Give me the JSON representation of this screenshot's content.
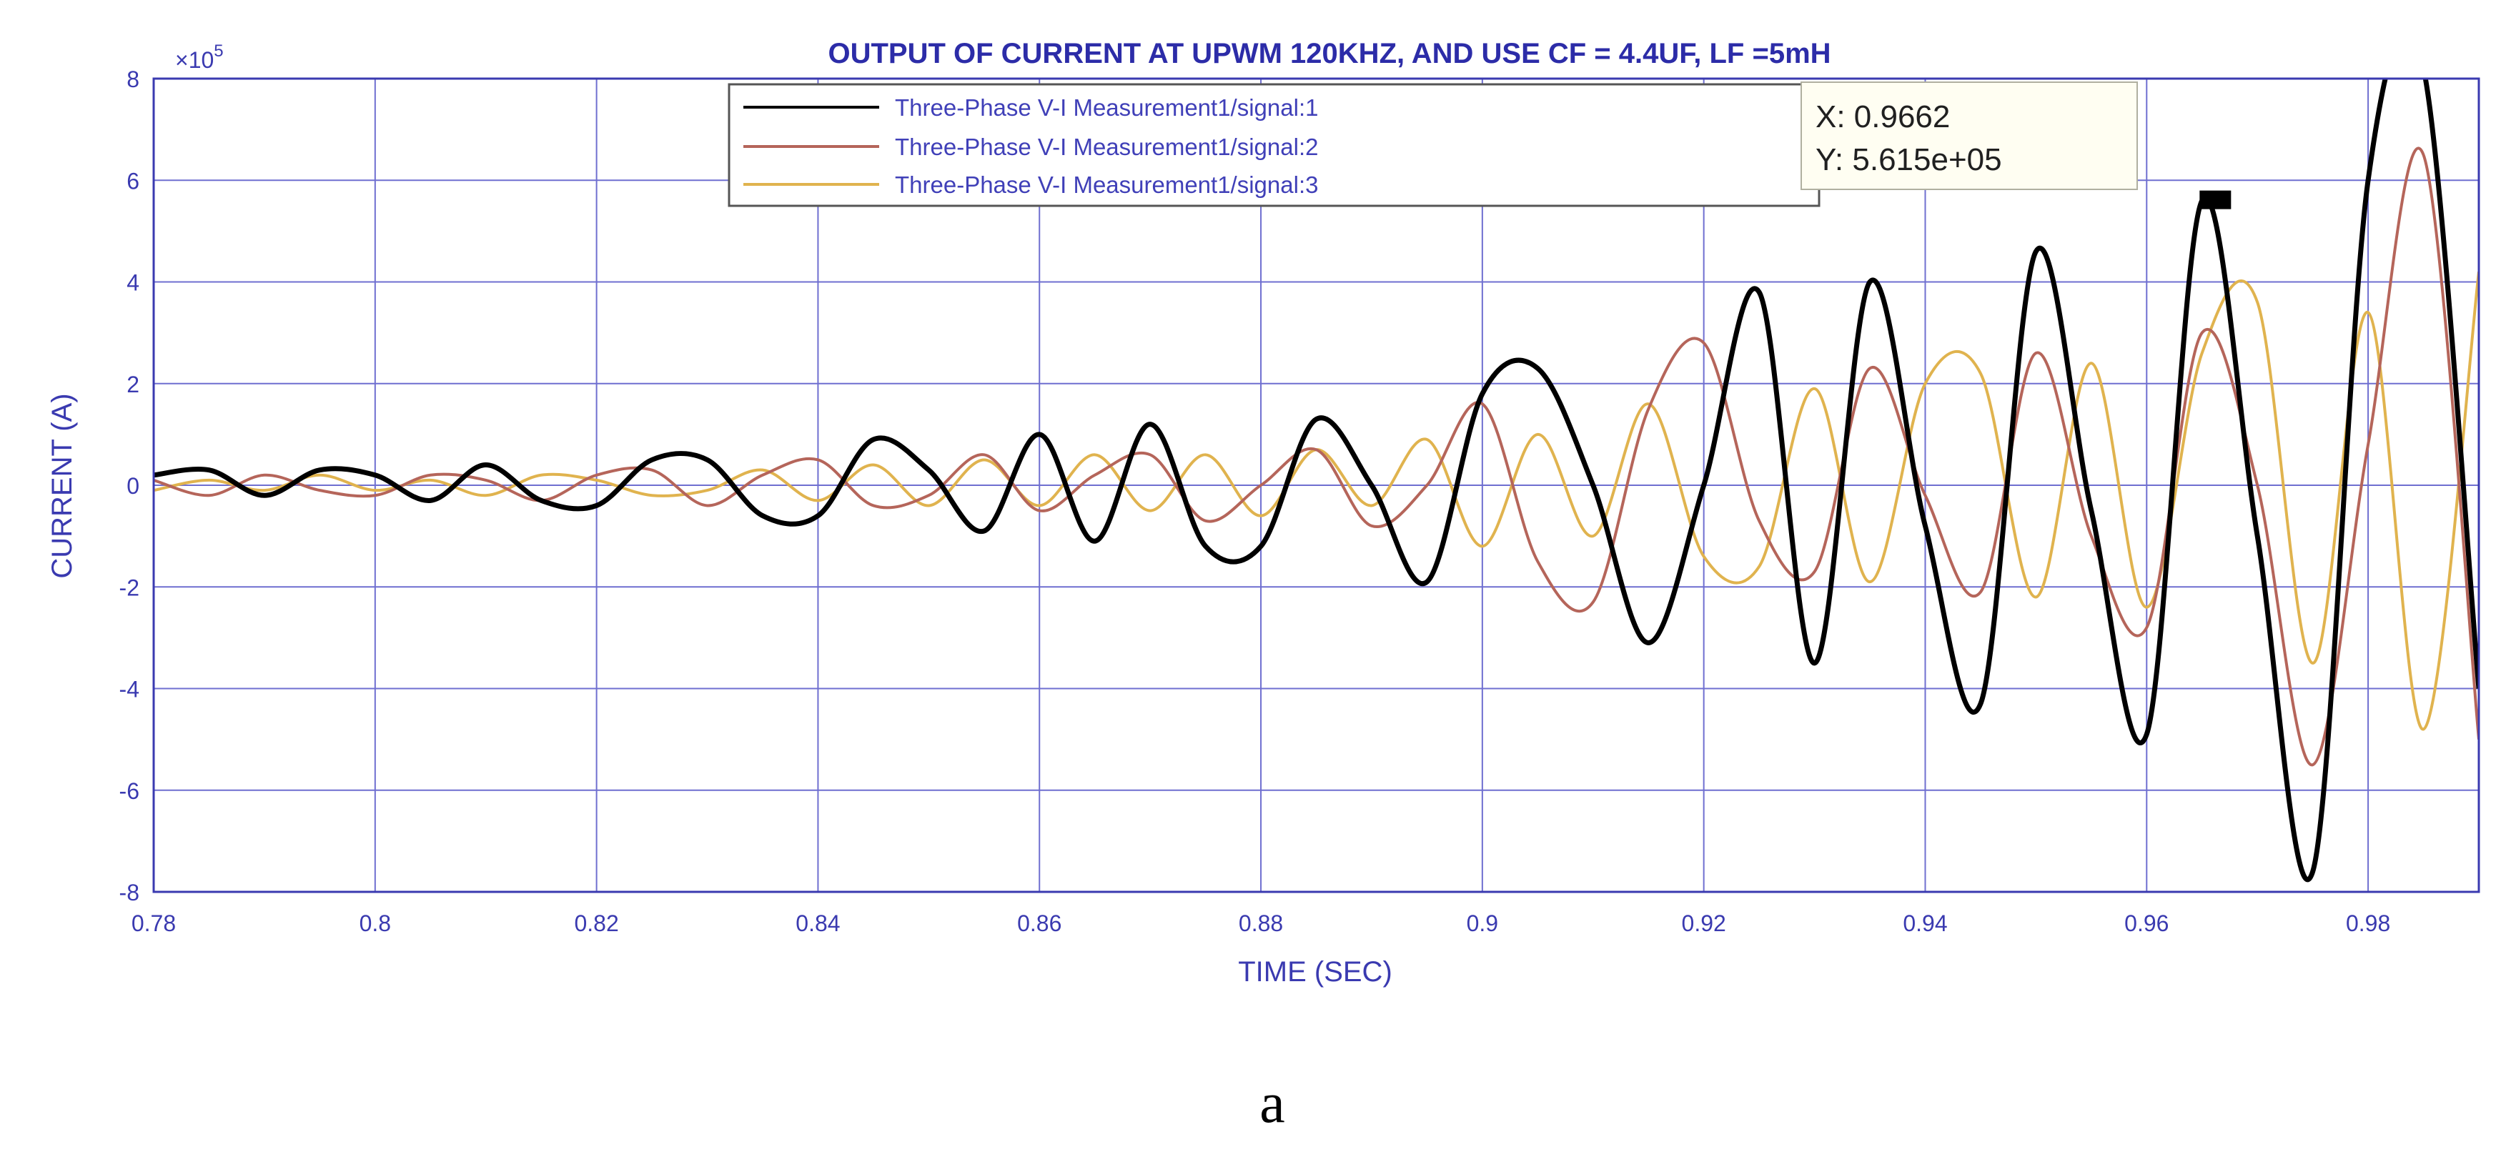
{
  "chart_data": {
    "type": "line",
    "title": "OUTPUT OF CURRENT AT UPWM 120KHZ, AND USE CF = 4.4UF, LF =5mH",
    "xlabel": "TIME (SEC)",
    "ylabel": "CURRENT (A)",
    "y_exponent_label": "×10",
    "y_exponent_power": "5",
    "xlim": [
      0.78,
      0.99
    ],
    "ylim": [
      -8,
      8
    ],
    "xticks": [
      0.78,
      0.8,
      0.82,
      0.84,
      0.86,
      0.88,
      0.9,
      0.92,
      0.94,
      0.96,
      0.98
    ],
    "xtick_labels": [
      "0.78",
      "0.8",
      "0.82",
      "0.84",
      "0.86",
      "0.88",
      "0.9",
      "0.92",
      "0.94",
      "0.96",
      "0.98"
    ],
    "yticks": [
      -8,
      -6,
      -4,
      -2,
      0,
      2,
      4,
      6,
      8
    ],
    "ytick_labels": [
      "-8",
      "-6",
      "-4",
      "-2",
      "0",
      "2",
      "4",
      "6",
      "8"
    ],
    "grid": true,
    "legend_position": "top-center",
    "colors": {
      "axis": "#3a3ab0",
      "grid": "#6f6fd0",
      "background": "#ffffff"
    },
    "series": [
      {
        "name": "Three-Phase V-I Measurement1/signal:1",
        "color": "#000000",
        "x": [
          0.78,
          0.785,
          0.79,
          0.795,
          0.8,
          0.805,
          0.81,
          0.815,
          0.82,
          0.825,
          0.83,
          0.835,
          0.84,
          0.845,
          0.85,
          0.855,
          0.86,
          0.865,
          0.87,
          0.875,
          0.88,
          0.885,
          0.89,
          0.895,
          0.9,
          0.905,
          0.91,
          0.915,
          0.92,
          0.925,
          0.93,
          0.935,
          0.94,
          0.945,
          0.95,
          0.955,
          0.96,
          0.965,
          0.97,
          0.975,
          0.98,
          0.985,
          0.99
        ],
        "y": [
          0.2,
          0.3,
          -0.2,
          0.3,
          0.2,
          -0.3,
          0.4,
          -0.3,
          -0.4,
          0.5,
          0.5,
          -0.6,
          -0.6,
          0.9,
          0.3,
          -0.9,
          1.0,
          -1.1,
          1.2,
          -1.2,
          -1.2,
          1.3,
          0.0,
          -1.9,
          1.8,
          2.3,
          0.0,
          -3.1,
          0.0,
          3.8,
          -3.5,
          4.0,
          -0.8,
          -4.3,
          4.6,
          -0.5,
          -4.9,
          5.6,
          -1.0,
          -7.6,
          6.0,
          8.2,
          -4.0
        ]
      },
      {
        "name": "Three-Phase V-I Measurement1/signal:2",
        "color": "#b5655a",
        "x": [
          0.78,
          0.785,
          0.79,
          0.795,
          0.8,
          0.805,
          0.81,
          0.815,
          0.82,
          0.825,
          0.83,
          0.835,
          0.84,
          0.845,
          0.85,
          0.855,
          0.86,
          0.865,
          0.87,
          0.875,
          0.88,
          0.885,
          0.89,
          0.895,
          0.9,
          0.905,
          0.91,
          0.915,
          0.92,
          0.925,
          0.93,
          0.935,
          0.94,
          0.945,
          0.95,
          0.955,
          0.96,
          0.965,
          0.97,
          0.975,
          0.98,
          0.985,
          0.99
        ],
        "y": [
          0.1,
          -0.2,
          0.2,
          -0.1,
          -0.2,
          0.2,
          0.1,
          -0.3,
          0.2,
          0.3,
          -0.4,
          0.2,
          0.5,
          -0.4,
          -0.2,
          0.6,
          -0.5,
          0.2,
          0.6,
          -0.7,
          0.0,
          0.7,
          -0.8,
          0.0,
          1.6,
          -1.5,
          -2.3,
          1.5,
          2.8,
          -0.7,
          -1.7,
          2.3,
          -0.2,
          -2.1,
          2.6,
          -1.0,
          -2.8,
          3.0,
          0.0,
          -5.5,
          0.8,
          6.5,
          -5.0
        ]
      },
      {
        "name": "Three-Phase V-I Measurement1/signal:3",
        "color": "#e0b34e",
        "x": [
          0.78,
          0.785,
          0.79,
          0.795,
          0.8,
          0.805,
          0.81,
          0.815,
          0.82,
          0.825,
          0.83,
          0.835,
          0.84,
          0.845,
          0.85,
          0.855,
          0.86,
          0.865,
          0.87,
          0.875,
          0.88,
          0.885,
          0.89,
          0.895,
          0.9,
          0.905,
          0.91,
          0.915,
          0.92,
          0.925,
          0.93,
          0.935,
          0.94,
          0.945,
          0.95,
          0.955,
          0.96,
          0.965,
          0.97,
          0.975,
          0.98,
          0.985,
          0.99
        ],
        "y": [
          -0.1,
          0.1,
          -0.1,
          0.2,
          -0.1,
          0.1,
          -0.2,
          0.2,
          0.1,
          -0.2,
          -0.1,
          0.3,
          -0.3,
          0.4,
          -0.4,
          0.5,
          -0.4,
          0.6,
          -0.5,
          0.6,
          -0.6,
          0.7,
          -0.4,
          0.9,
          -1.2,
          1.0,
          -1.0,
          1.6,
          -1.4,
          -1.6,
          1.9,
          -1.9,
          2.0,
          2.2,
          -2.2,
          2.4,
          -2.4,
          2.6,
          3.6,
          -3.5,
          3.4,
          -4.8,
          4.2
        ]
      }
    ],
    "datatip": {
      "x_line": "X: 0.9662",
      "y_line": "Y: 5.615e+05",
      "x": 0.9662,
      "y": 5.615
    }
  },
  "caption": "a"
}
